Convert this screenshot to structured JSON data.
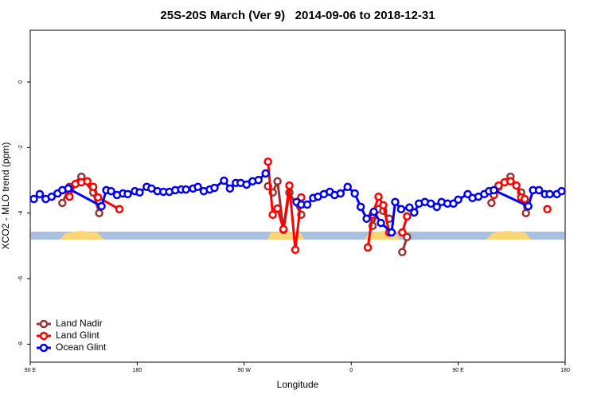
{
  "chart_data": {
    "type": "line",
    "title": "25S-20S March (Ver 9)   2014-09-06 to 2018-12-31",
    "xlabel": "Longitude",
    "ylabel": "XCO2 - MLO trend (ppm)",
    "xlim": [
      90,
      540
    ],
    "xticks": [
      {
        "value": 90,
        "label": "90 E"
      },
      180,
      {
        "value": 270,
        "label": "90 W"
      },
      {
        "value": 360,
        "label": "0"
      },
      {
        "value": 450,
        "label": "90 E"
      },
      {
        "value": 540,
        "label": "180"
      }
    ],
    "ylim": [
      -8.55,
      1.58
    ],
    "yticks": [
      0,
      -2,
      -4,
      -6,
      -8
    ],
    "legend": "lower left",
    "series": [
      {
        "name": "Land Nadir",
        "color": "#993333",
        "x": [
          117,
          123,
          133,
          143,
          148,
          null,
          290,
          294,
          298,
          303,
          308,
          318,
          null,
          378,
          383,
          387,
          392,
          null,
          403,
          407,
          null,
          478,
          484,
          494,
          503,
          507
        ],
        "values": [
          -3.69,
          -3.2,
          -2.89,
          -3.37,
          -4.0,
          null,
          -3.18,
          -3.37,
          -3.03,
          -4.51,
          -3.37,
          -4.05,
          null,
          -4.39,
          -3.88,
          -3.93,
          -4.17,
          null,
          -5.19,
          -4.73,
          null,
          -3.69,
          -3.2,
          -2.89,
          -3.37,
          -4.0
        ]
      },
      {
        "name": "Land Glint",
        "color": "#ff0000",
        "x": [
          123,
          128,
          133,
          138,
          143,
          147,
          165,
          null,
          290,
          294,
          298,
          303,
          308,
          313,
          318,
          null,
          374,
          378,
          383,
          387,
          392,
          null,
          403,
          407,
          null,
          480,
          484,
          489,
          494,
          499,
          503,
          506,
          null,
          525
        ],
        "values": [
          -3.5,
          -3.11,
          -3.06,
          -3.03,
          -3.2,
          -3.52,
          -3.88,
          null,
          -2.43,
          -4.05,
          -3.86,
          -4.49,
          -3.16,
          -5.12,
          -3.52,
          null,
          -5.05,
          -4.05,
          -3.5,
          -3.76,
          -4.59,
          null,
          -4.59,
          -4.1,
          null,
          -3.45,
          -3.16,
          -3.06,
          -3.03,
          -3.16,
          -3.52,
          -3.57,
          null,
          -3.88
        ]
      },
      {
        "name": "Ocean Glint",
        "color": "#0000ee",
        "x": [
          93,
          98,
          103,
          108,
          113,
          117,
          122,
          150,
          154,
          158,
          163,
          168,
          172,
          178,
          182,
          188,
          192,
          197,
          202,
          207,
          212,
          217,
          221,
          227,
          231,
          236,
          241,
          245,
          253,
          258,
          263,
          267,
          272,
          277,
          282,
          288,
          null,
          314,
          318,
          323,
          328,
          332,
          337,
          342,
          346,
          351,
          357,
          363,
          368,
          373,
          379,
          385,
          394,
          397,
          402,
          409,
          413,
          417,
          422,
          427,
          432,
          436,
          441,
          446,
          450,
          458,
          462,
          467,
          472,
          476,
          480,
          509,
          513,
          518,
          523,
          527,
          533,
          537
        ],
        "values": [
          -3.57,
          -3.42,
          -3.57,
          -3.5,
          -3.4,
          -3.3,
          -3.25,
          -3.79,
          -3.3,
          -3.33,
          -3.45,
          -3.4,
          -3.42,
          -3.33,
          -3.37,
          -3.2,
          -3.25,
          -3.33,
          -3.35,
          -3.35,
          -3.3,
          -3.28,
          -3.28,
          -3.25,
          -3.2,
          -3.33,
          -3.28,
          -3.23,
          -3.01,
          -3.25,
          -3.08,
          -3.08,
          -3.13,
          -3.03,
          -2.99,
          -2.79,
          null,
          -3.66,
          -3.74,
          -3.74,
          -3.54,
          -3.5,
          -3.42,
          -3.35,
          -3.45,
          -3.4,
          -3.2,
          -3.4,
          -3.81,
          -4.17,
          -3.96,
          -4.3,
          -4.59,
          -3.66,
          -3.88,
          -3.83,
          -3.98,
          -3.71,
          -3.66,
          -3.71,
          -3.81,
          -3.66,
          -3.71,
          -3.71,
          -3.59,
          -3.42,
          -3.54,
          -3.5,
          -3.42,
          -3.33,
          -3.3,
          -3.79,
          -3.3,
          -3.3,
          -3.42,
          -3.42,
          -3.42,
          -3.33
        ]
      }
    ]
  }
}
